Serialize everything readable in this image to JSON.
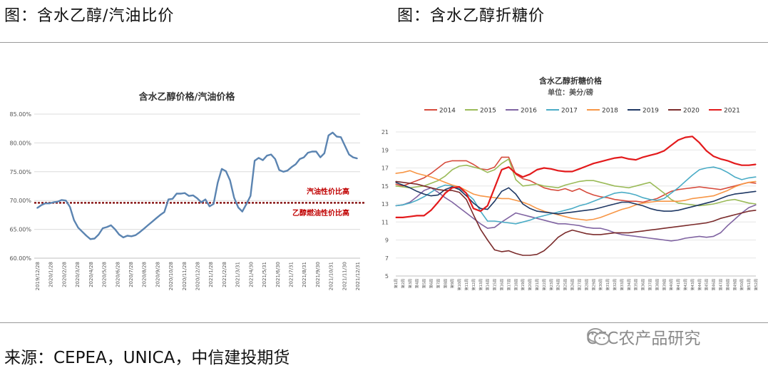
{
  "header": {
    "left": "图：含水乙醇/汽油比价",
    "right": "图：含水乙醇折糖价"
  },
  "footer": {
    "source": "来源：CEPEA，UNICA，中信建投期货",
    "watermark": "CFC农产品研究",
    "watermark_icon": "wechat-icon"
  },
  "chart_data": [
    {
      "type": "line",
      "title": "含水乙醇价格/汽油价格",
      "ylim": [
        60,
        85
      ],
      "yticks": [
        "60.00%",
        "65.00%",
        "70.00%",
        "75.00%",
        "80.00%",
        "85.00%"
      ],
      "ytick_values": [
        60,
        65,
        70,
        75,
        80,
        85
      ],
      "x_tick_labels": [
        "2019/12/28",
        "2020/1/28",
        "2020/2/28",
        "2020/3/28",
        "2020/4/28",
        "2020/5/28",
        "2020/6/28",
        "2020/7/28",
        "2020/8/28",
        "2020/9/28",
        "2020/10/28",
        "2020/11/28",
        "2020/12/28",
        "2021/1/28",
        "2021/2/28",
        "2021/3/31",
        "2021/4/30",
        "2021/5/31",
        "2021/6/30",
        "2021/7/31",
        "2021/8/31",
        "2021/9/30",
        "2021/10/31",
        "2021/11/30",
        "2021/12/31"
      ],
      "series": [
        {
          "color": "#5b84b1",
          "values": [
            68.7,
            69.2,
            69.5,
            69.5,
            69.7,
            69.8,
            70.1,
            70.0,
            68.9,
            66.6,
            65.3,
            64.6,
            63.9,
            63.3,
            63.4,
            64.1,
            65.2,
            65.4,
            65.7,
            65.0,
            64.1,
            63.6,
            63.9,
            63.8,
            64.0,
            64.5,
            65.1,
            65.7,
            66.3,
            66.9,
            67.5,
            68.0,
            70.2,
            70.3,
            71.2,
            71.2,
            71.3,
            70.8,
            70.9,
            70.4,
            69.7,
            70.2,
            69.0,
            69.4,
            73.1,
            75.5,
            75.1,
            73.5,
            70.5,
            68.8,
            68.1,
            69.4,
            70.8,
            76.9,
            77.4,
            77.0,
            77.8,
            78.0,
            77.2,
            75.3,
            75.0,
            75.2,
            75.8,
            76.3,
            77.2,
            77.5,
            78.3,
            78.5,
            78.5,
            77.5,
            78.2,
            81.3,
            81.8,
            81.1,
            81.0,
            79.5,
            78.0,
            77.5,
            77.3
          ]
        }
      ],
      "reference_line": {
        "value": 69.6,
        "color": "#8b1a1a"
      },
      "annotations": [
        "汽油性价比高",
        "乙醇燃油性价比高"
      ],
      "annotation_color": "#c00000"
    },
    {
      "type": "line",
      "title": "含水乙醇折糖价格",
      "subtitle": "单位：美分/磅",
      "ylim": [
        5,
        21
      ],
      "yticks": [
        "5",
        "7",
        "9",
        "11",
        "13",
        "15",
        "17",
        "19",
        "21"
      ],
      "ytick_values": [
        5,
        7,
        9,
        11,
        13,
        15,
        17,
        19,
        21
      ],
      "x_tick_labels": [
        "第1周",
        "第2周",
        "第3周",
        "第4周",
        "第5周",
        "第6周",
        "第7周",
        "第8周",
        "第9周",
        "第10周",
        "第11周",
        "第12周",
        "第13周",
        "第14周",
        "第15周",
        "第16周",
        "第17周",
        "第18周",
        "第19周",
        "第20周",
        "第21周",
        "第22周",
        "第23周",
        "第24周",
        "第25周",
        "第26周",
        "第27周",
        "第28周",
        "第29周",
        "第30周",
        "第31周",
        "第32周",
        "第33周",
        "第34周",
        "第35周",
        "第36周",
        "第37周",
        "第38周",
        "第39周",
        "第40周",
        "第41周",
        "第42周",
        "第43周",
        "第44周",
        "第45周",
        "第46周",
        "第47周",
        "第48周",
        "第49周",
        "第50周",
        "第51周",
        "第52周"
      ],
      "legend_position": "top",
      "series": [
        {
          "name": "2014",
          "color": "#d64b3c",
          "values": [
            15.2,
            15.0,
            15.3,
            15.6,
            15.9,
            16.4,
            17.0,
            17.6,
            17.8,
            17.8,
            17.8,
            17.4,
            16.9,
            16.8,
            17.1,
            18.2,
            18.2,
            16.3,
            15.8,
            15.6,
            15.2,
            14.8,
            14.6,
            14.5,
            14.7,
            14.4,
            14.7,
            14.3,
            14.0,
            13.8,
            13.7,
            13.5,
            13.4,
            13.3,
            13.3,
            13.2,
            13.4,
            13.6,
            14.0,
            14.4,
            14.6,
            14.7,
            14.8,
            14.9,
            14.8,
            14.7,
            14.6,
            14.8,
            15.0,
            15.2,
            15.4,
            15.3
          ]
        },
        {
          "name": "2015",
          "color": "#9bbb59",
          "values": [
            15.0,
            14.9,
            14.8,
            14.9,
            15.0,
            15.3,
            15.6,
            16.1,
            16.8,
            17.2,
            17.3,
            17.1,
            16.9,
            16.5,
            16.8,
            17.5,
            18.0,
            15.7,
            15.0,
            15.1,
            15.2,
            15.0,
            14.9,
            14.8,
            15.1,
            15.3,
            15.5,
            15.6,
            15.6,
            15.4,
            15.2,
            15.0,
            14.9,
            14.8,
            15.0,
            15.2,
            15.4,
            14.8,
            14.2,
            13.5,
            13.1,
            13.0,
            12.9,
            12.8,
            12.9,
            13.0,
            13.2,
            13.4,
            13.5,
            13.3,
            13.1,
            13.0
          ]
        },
        {
          "name": "2016",
          "color": "#8064a2",
          "values": [
            12.8,
            12.9,
            13.2,
            13.8,
            14.5,
            14.8,
            14.3,
            13.7,
            13.2,
            12.6,
            12.0,
            11.4,
            10.8,
            10.3,
            10.4,
            11.0,
            11.5,
            12.0,
            11.8,
            11.6,
            11.4,
            11.2,
            11.0,
            10.8,
            10.8,
            10.7,
            10.6,
            10.4,
            10.3,
            10.3,
            10.1,
            9.8,
            9.6,
            9.5,
            9.4,
            9.3,
            9.2,
            9.1,
            9.0,
            8.9,
            9.0,
            9.2,
            9.3,
            9.4,
            9.3,
            9.4,
            9.8,
            10.6,
            11.3,
            12.0,
            12.6,
            12.9
          ]
        },
        {
          "name": "2017",
          "color": "#4bacc6",
          "values": [
            12.8,
            12.9,
            13.1,
            13.4,
            13.8,
            14.3,
            14.8,
            15.1,
            15.0,
            14.7,
            14.2,
            13.5,
            12.2,
            11.1,
            11.1,
            11.0,
            10.9,
            10.8,
            11.0,
            11.2,
            11.5,
            11.7,
            11.9,
            12.1,
            12.3,
            12.5,
            12.8,
            13.0,
            13.3,
            13.6,
            13.9,
            14.2,
            14.3,
            14.2,
            14.0,
            13.7,
            13.5,
            13.4,
            13.6,
            14.2,
            14.8,
            15.5,
            16.2,
            16.8,
            17.0,
            17.1,
            16.9,
            16.5,
            16.0,
            15.7,
            15.9,
            16.0
          ]
        },
        {
          "name": "2018",
          "color": "#f79646",
          "values": [
            16.4,
            16.5,
            16.7,
            16.4,
            16.2,
            16.0,
            15.7,
            15.4,
            15.1,
            14.9,
            14.5,
            14.1,
            13.9,
            13.8,
            13.7,
            13.6,
            13.6,
            13.4,
            13.2,
            12.9,
            12.5,
            12.2,
            12.0,
            11.8,
            11.6,
            11.4,
            11.3,
            11.2,
            11.3,
            11.5,
            11.8,
            12.1,
            12.4,
            12.6,
            12.9,
            13.1,
            13.2,
            13.3,
            13.3,
            13.3,
            13.3,
            13.4,
            13.6,
            13.7,
            13.8,
            13.9,
            14.2,
            14.5,
            14.9,
            15.2,
            15.4,
            15.5
          ]
        },
        {
          "name": "2019",
          "color": "#1f3864",
          "values": [
            15.4,
            15.1,
            14.8,
            14.4,
            14.1,
            13.9,
            14.0,
            14.6,
            14.9,
            14.6,
            13.9,
            13.1,
            12.5,
            12.4,
            13.3,
            14.4,
            14.8,
            14.1,
            13.0,
            12.5,
            12.2,
            12.1,
            12.0,
            11.9,
            12.0,
            12.1,
            12.2,
            12.3,
            12.4,
            12.6,
            12.8,
            13.0,
            13.2,
            13.2,
            13.0,
            12.8,
            12.5,
            12.3,
            12.2,
            12.2,
            12.3,
            12.5,
            12.7,
            12.9,
            13.1,
            13.3,
            13.6,
            13.9,
            14.1,
            14.2,
            14.3,
            14.4
          ]
        },
        {
          "name": "2020",
          "color": "#7b2c2c",
          "values": [
            15.5,
            15.4,
            15.3,
            15.2,
            15.0,
            14.8,
            14.6,
            14.5,
            14.5,
            14.3,
            13.5,
            11.8,
            10.2,
            9.0,
            7.9,
            7.7,
            7.8,
            7.5,
            7.3,
            7.3,
            7.4,
            7.8,
            8.5,
            9.3,
            9.8,
            10.1,
            9.9,
            9.7,
            9.6,
            9.6,
            9.7,
            9.8,
            9.8,
            9.8,
            9.9,
            10.0,
            10.1,
            10.2,
            10.3,
            10.4,
            10.5,
            10.6,
            10.7,
            10.8,
            10.9,
            11.1,
            11.4,
            11.6,
            11.8,
            12.0,
            12.2,
            12.3
          ]
        },
        {
          "name": "2021",
          "color": "#e31a1c",
          "values": [
            11.5,
            11.5,
            11.6,
            11.7,
            11.7,
            12.3,
            13.2,
            14.2,
            14.8,
            14.9,
            14.2,
            12.5,
            12.2,
            12.8,
            14.8,
            16.8,
            17.1,
            16.4,
            16.0,
            16.3,
            16.8,
            17.0,
            16.9,
            16.7,
            16.6,
            16.6,
            16.9,
            17.2,
            17.5,
            17.7,
            17.9,
            18.1,
            18.2,
            18.0,
            17.9,
            18.2,
            18.4,
            18.6,
            18.9,
            19.5,
            20.1,
            20.4,
            20.5,
            19.8,
            18.9,
            18.3,
            18.0,
            17.8,
            17.5,
            17.3,
            17.3,
            17.4
          ]
        }
      ]
    }
  ]
}
